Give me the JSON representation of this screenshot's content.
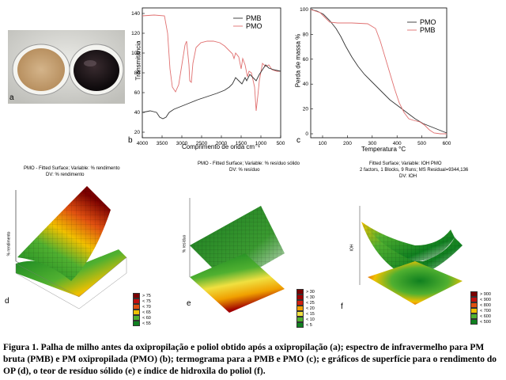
{
  "panels": {
    "a": {
      "label": "a"
    },
    "b": {
      "label": "b",
      "ylabel": "Transmitância",
      "xlabel": "Comprimento de onda cm⁻¹",
      "yticks": [
        "140",
        "120",
        "100",
        "80",
        "60",
        "40",
        "20"
      ],
      "xticks": [
        "4000",
        "3500",
        "3000",
        "2500",
        "2000",
        "1500",
        "1000",
        "500"
      ],
      "legend": [
        "PMB",
        "PMO"
      ],
      "colors": {
        "PMB": "#333333",
        "PMO": "#e07070"
      }
    },
    "c": {
      "label": "c",
      "ylabel": "Perda de massa %",
      "xlabel": "Temperatura °C",
      "yticks": [
        "100",
        "80",
        "60",
        "40",
        "20",
        "0"
      ],
      "xticks": [
        "100",
        "200",
        "300",
        "400",
        "500",
        "600"
      ],
      "legend": [
        "PMO",
        "PMB"
      ],
      "colors": {
        "PMO": "#333333",
        "PMB": "#e07070"
      }
    },
    "d": {
      "label": "d",
      "title": "PMO - Fitted Surface; Variable: % rendimento",
      "subtitle": "DV: % rendimento",
      "zlabel": "% rendimento",
      "legend": [
        "> 75",
        "< 75",
        "< 70",
        "< 65",
        "< 60",
        "< 55"
      ],
      "legend_colors": [
        "#7a0000",
        "#c01010",
        "#e05010",
        "#f0c000",
        "#50b030",
        "#108020"
      ]
    },
    "e": {
      "label": "e",
      "title": "PMO - Fitted Surface; Variable: % resíduo sólido",
      "subtitle": "DV: % resíduo",
      "zlabel": "% resíduo",
      "legend": [
        "> 30",
        "< 30",
        "< 25",
        "< 20",
        "< 15",
        "< 10",
        "< 5"
      ],
      "legend_colors": [
        "#7a0000",
        "#a00000",
        "#d02010",
        "#f0a000",
        "#f0e040",
        "#50b030",
        "#108020"
      ]
    },
    "f": {
      "label": "f",
      "title": "Fitted Surface; Variable: IOH PMO",
      "subtitle": "2 factors, 1 Blocks, 9 Runs; MS Residual=9344,136",
      "subtitle2": "DV: IOH",
      "zlabel": "IOH",
      "legend": [
        "> 900",
        "< 900",
        "< 800",
        "< 700",
        "< 600",
        "< 500"
      ],
      "legend_colors": [
        "#7a0000",
        "#c01010",
        "#e05010",
        "#f0c000",
        "#50b030",
        "#108020"
      ]
    }
  },
  "caption": "Figura 1. Palha de milho antes da oxipropilação e poliol obtido após a oxipropilação (a); espectro de infravermelho para PM bruta (PMB) e PM oxipropilada (PMO) (b); termograma para a PMB e PMO (c); e gráficos de superfície para o rendimento do OP (d), o teor de resíduo sólido (e) e índice de hidroxila do poliol (f)."
}
